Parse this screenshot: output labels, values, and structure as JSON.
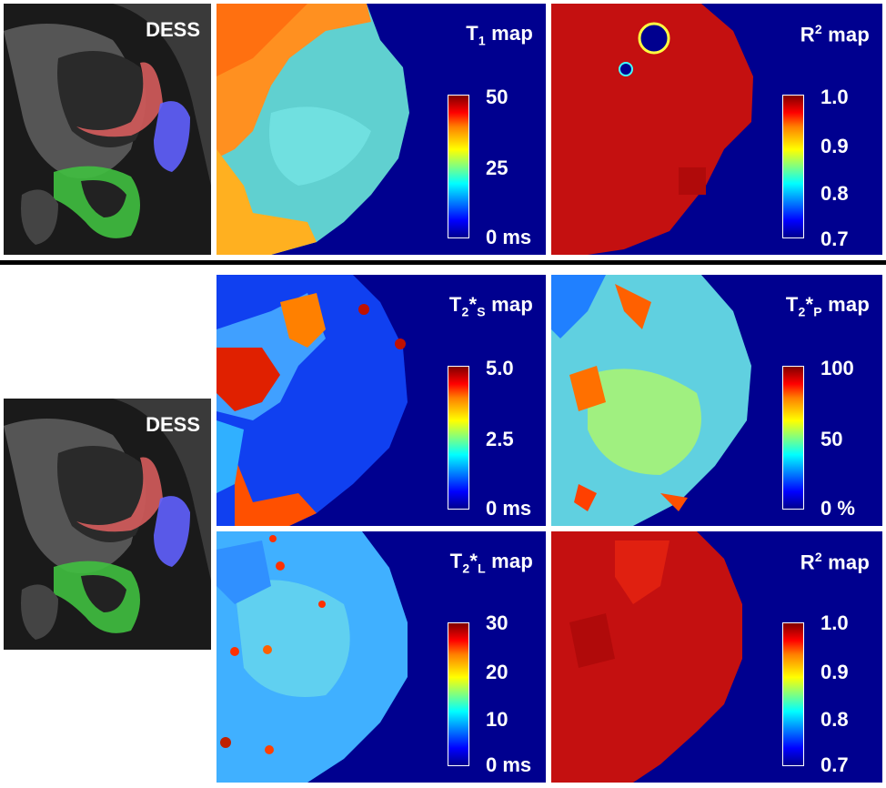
{
  "dess_label": "DESS",
  "top_row": {
    "t1": {
      "title_main": "T",
      "title_sub": "1",
      "title_rest": " map",
      "ticks": [
        "50",
        "25",
        "0 ms"
      ]
    },
    "r2": {
      "title_main": "R",
      "title_sup": "2",
      "title_rest": " map",
      "ticks": [
        "1.0",
        "0.9",
        "0.8",
        "0.7"
      ]
    }
  },
  "bottom_grid": {
    "t2s": {
      "title_main": "T",
      "title_sub": "2",
      "title_mid": "*",
      "title_sub2": "S",
      "title_rest": " map",
      "ticks": [
        "5.0",
        "2.5",
        "0 ms"
      ]
    },
    "t2p": {
      "title_main": "T",
      "title_sub": "2",
      "title_mid": "*",
      "title_sub2": "P",
      "title_rest": " map",
      "ticks": [
        "100",
        "50",
        "0 %"
      ]
    },
    "t2l": {
      "title_main": "T",
      "title_sub": "2",
      "title_mid": "*",
      "title_sub2": "L",
      "title_rest": " map",
      "ticks": [
        "30",
        "20",
        "10",
        "0 ms"
      ]
    },
    "r2b": {
      "title_main": "R",
      "title_sup": "2",
      "title_rest": " map",
      "ticks": [
        "1.0",
        "0.9",
        "0.8",
        "0.7"
      ]
    }
  },
  "colors": {
    "background_blue": "#00008f",
    "red_roi": "#e06060",
    "green_roi": "#40c040",
    "blue_roi": "#6060ff"
  }
}
